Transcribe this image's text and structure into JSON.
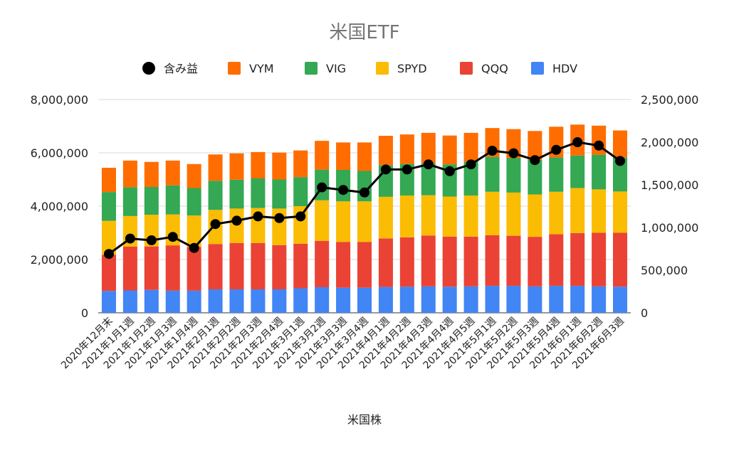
{
  "chart_data": {
    "type": "bar",
    "stacked": true,
    "title": "米国ETF",
    "xlabel": "米国株",
    "ylabel": "",
    "y2label": "",
    "legend_position": "top",
    "grid": true,
    "ylim": [
      0,
      8000000
    ],
    "y2lim": [
      0,
      2500000
    ],
    "yticks": [
      "0",
      "2,000,000",
      "4,000,000",
      "6,000,000",
      "8,000,000"
    ],
    "y2ticks": [
      "0",
      "500,000",
      "1,000,000",
      "1,500,000",
      "2,000,000",
      "2,500,000"
    ],
    "categories": [
      "2020年12月末",
      "2021年1月1週",
      "2021年1月2週",
      "2021年1月3週",
      "2021年1月4週",
      "2021年2月1週",
      "2021年2月2週",
      "2021年2月3週",
      "2021年2月4週",
      "2021年3月1週",
      "2021年3月2週",
      "2021年3月3週",
      "2021年3月4週",
      "2021年4月1週",
      "2021年4月2週",
      "2021年4月3週",
      "2021年4月4週",
      "2021年4月5週",
      "2021年5月1週",
      "2021年5月2週",
      "2021年5月3週",
      "2021年5月4週",
      "2021年6月1週",
      "2021年6月2週",
      "2021年6月3週"
    ],
    "series": [
      {
        "name": "HDV",
        "color": "#4285f4",
        "axis": "left",
        "values": [
          820000,
          840000,
          860000,
          830000,
          830000,
          880000,
          880000,
          880000,
          880000,
          920000,
          960000,
          940000,
          940000,
          970000,
          980000,
          990000,
          980000,
          990000,
          1010000,
          1010000,
          990000,
          1010000,
          1010000,
          990000,
          980000
        ]
      },
      {
        "name": "QQQ",
        "color": "#ea4335",
        "axis": "left",
        "values": [
          1360000,
          1640000,
          1630000,
          1700000,
          1640000,
          1700000,
          1740000,
          1740000,
          1660000,
          1670000,
          1740000,
          1720000,
          1720000,
          1820000,
          1850000,
          1910000,
          1880000,
          1870000,
          1900000,
          1880000,
          1860000,
          1940000,
          1980000,
          2010000,
          2020000
        ]
      },
      {
        "name": "SPYD",
        "color": "#fbbc04",
        "axis": "left",
        "values": [
          1270000,
          1150000,
          1190000,
          1160000,
          1180000,
          1280000,
          1290000,
          1310000,
          1370000,
          1410000,
          1520000,
          1520000,
          1520000,
          1560000,
          1570000,
          1510000,
          1500000,
          1540000,
          1630000,
          1620000,
          1590000,
          1590000,
          1690000,
          1630000,
          1550000
        ]
      },
      {
        "name": "VIG",
        "color": "#34a853",
        "axis": "left",
        "values": [
          1080000,
          1080000,
          1040000,
          1090000,
          1030000,
          1090000,
          1080000,
          1110000,
          1090000,
          1090000,
          1150000,
          1180000,
          1140000,
          1190000,
          1190000,
          1210000,
          1210000,
          1270000,
          1310000,
          1290000,
          1300000,
          1290000,
          1220000,
          1300000,
          1270000
        ]
      },
      {
        "name": "VYM",
        "color": "#ff6d01",
        "axis": "left",
        "values": [
          910000,
          1000000,
          940000,
          930000,
          900000,
          990000,
          990000,
          990000,
          1010000,
          1000000,
          1080000,
          1030000,
          1070000,
          1100000,
          1100000,
          1130000,
          1080000,
          1080000,
          1080000,
          1090000,
          1080000,
          1150000,
          1160000,
          1090000,
          1020000
        ]
      },
      {
        "name": "含み益",
        "color": "#000000",
        "axis": "right",
        "type": "line",
        "values": [
          690000,
          870000,
          850000,
          890000,
          760000,
          1040000,
          1080000,
          1130000,
          1110000,
          1130000,
          1470000,
          1440000,
          1410000,
          1680000,
          1680000,
          1740000,
          1660000,
          1740000,
          1900000,
          1870000,
          1790000,
          1910000,
          2000000,
          1960000,
          1780000
        ]
      }
    ]
  }
}
